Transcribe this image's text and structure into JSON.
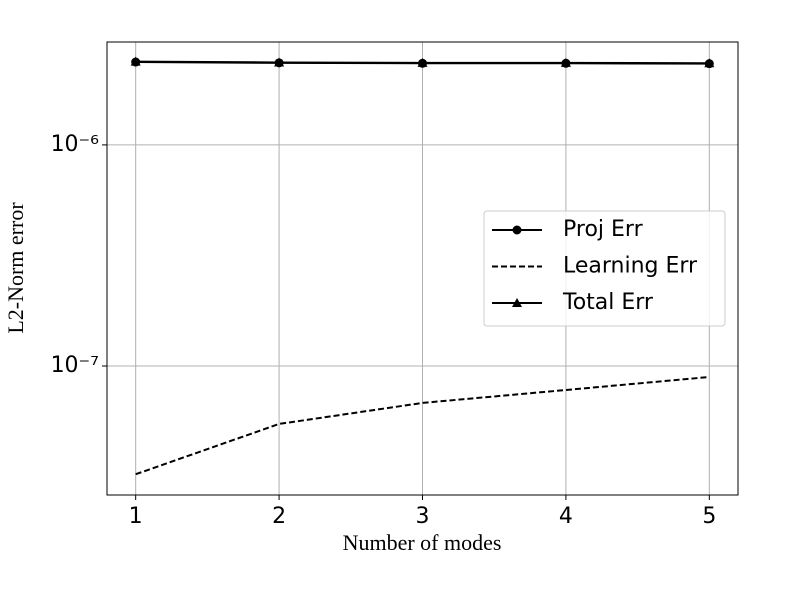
{
  "chart_data": {
    "type": "line",
    "x": [
      1,
      2,
      3,
      4,
      5
    ],
    "xlabel": "Number of modes",
    "ylabel": "L2-Norm error",
    "xlim": [
      0.8,
      5.2
    ],
    "xticks": [
      1,
      2,
      3,
      4,
      5
    ],
    "ylim": [
      2.61e-08,
      2.92e-06
    ],
    "yticks": [
      {
        "value": 1e-06,
        "label": "10⁻⁶"
      },
      {
        "value": 1e-07,
        "label": "10⁻⁷"
      }
    ],
    "yscale": "log",
    "grid": true,
    "legend": "center right",
    "series": [
      {
        "name": "Proj Err",
        "color": "#000000",
        "marker": "circle",
        "linestyle": "solid",
        "values": [
          2.37e-06,
          2.35e-06,
          2.34e-06,
          2.34e-06,
          2.33e-06
        ]
      },
      {
        "name": "Learning Err",
        "color": "#000000",
        "marker": "none",
        "linestyle": "dashed",
        "values": [
          3.24e-08,
          5.47e-08,
          6.81e-08,
          7.79e-08,
          8.92e-08
        ]
      },
      {
        "name": "Total Err",
        "color": "#000000",
        "marker": "triangle",
        "linestyle": "solid",
        "values": [
          2.38e-06,
          2.36e-06,
          2.35e-06,
          2.35e-06,
          2.34e-06
        ]
      }
    ]
  }
}
